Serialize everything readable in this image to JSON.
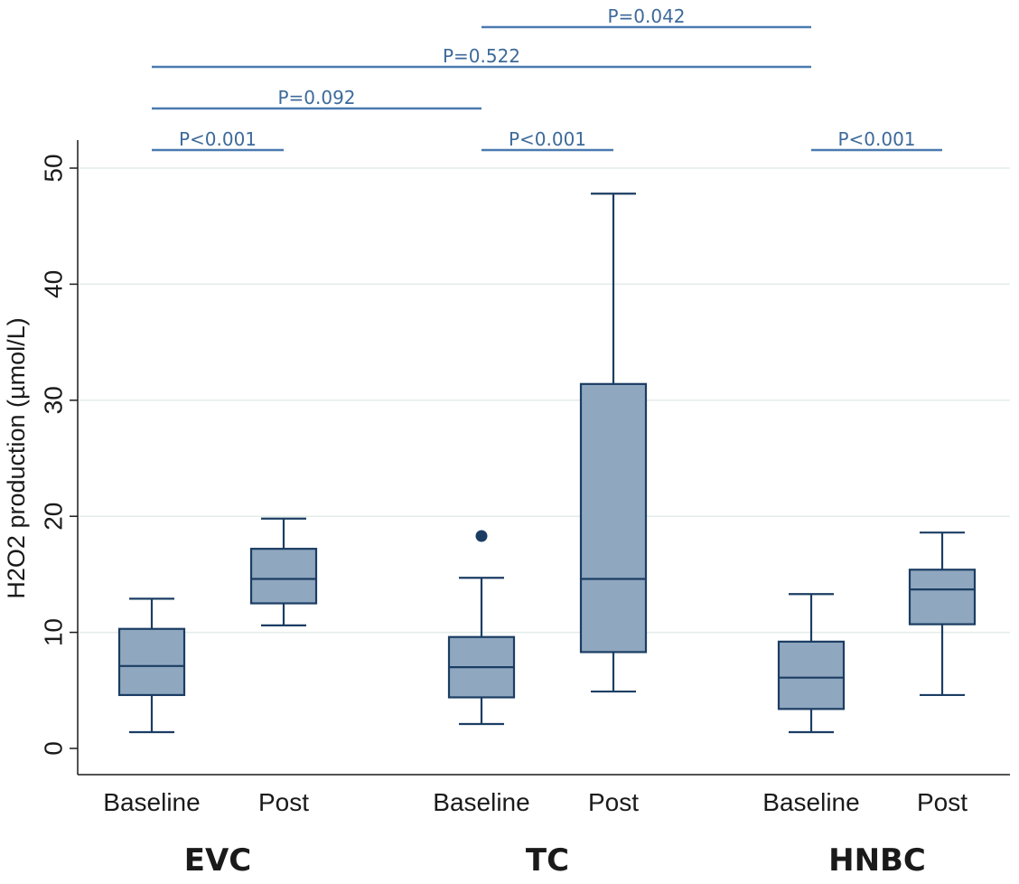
{
  "chart_data": {
    "type": "box",
    "ylabel": "H2O2 production (µmol/L)",
    "ylim": [
      0,
      50
    ],
    "yticks": [
      "0",
      "10",
      "20",
      "30",
      "40",
      "50"
    ],
    "grid": true,
    "groups": [
      "EVC",
      "TC",
      "HNBC"
    ],
    "categories": [
      "Baseline",
      "Post",
      "Baseline",
      "Post",
      "Baseline",
      "Post"
    ],
    "boxes": [
      {
        "group": "EVC",
        "label": "Baseline",
        "min": 1.4,
        "q1": 4.6,
        "median": 7.1,
        "q3": 10.3,
        "max": 12.9,
        "outliers": []
      },
      {
        "group": "EVC",
        "label": "Post",
        "min": 10.6,
        "q1": 12.5,
        "median": 14.6,
        "q3": 17.2,
        "max": 19.8,
        "outliers": []
      },
      {
        "group": "TC",
        "label": "Baseline",
        "min": 2.1,
        "q1": 4.4,
        "median": 7.0,
        "q3": 9.6,
        "max": 14.7,
        "outliers": [
          18.3
        ]
      },
      {
        "group": "TC",
        "label": "Post",
        "min": 4.9,
        "q1": 8.3,
        "median": 14.6,
        "q3": 31.4,
        "max": 47.8,
        "outliers": []
      },
      {
        "group": "HNBC",
        "label": "Baseline",
        "min": 1.4,
        "q1": 3.4,
        "median": 6.1,
        "q3": 9.2,
        "max": 13.3,
        "outliers": []
      },
      {
        "group": "HNBC",
        "label": "Post",
        "min": 4.6,
        "q1": 10.7,
        "median": 13.7,
        "q3": 15.4,
        "max": 18.6,
        "outliers": []
      }
    ],
    "comparisons": [
      {
        "from": 0,
        "to": 1,
        "label": "P<0.001"
      },
      {
        "from": 2,
        "to": 3,
        "label": "P<0.001"
      },
      {
        "from": 4,
        "to": 5,
        "label": "P<0.001"
      },
      {
        "from": 0,
        "to": 2,
        "label": "P=0.092"
      },
      {
        "from": 0,
        "to": 4,
        "label": "P=0.522"
      },
      {
        "from": 2,
        "to": 4,
        "label": "P=0.042"
      }
    ],
    "colors": {
      "box_fill": "#8fa7bf",
      "box_stroke": "#1b3d63",
      "bracket": "#4a7ab0",
      "grid": "#e3ece9",
      "outlier": "#1b3d63"
    }
  }
}
